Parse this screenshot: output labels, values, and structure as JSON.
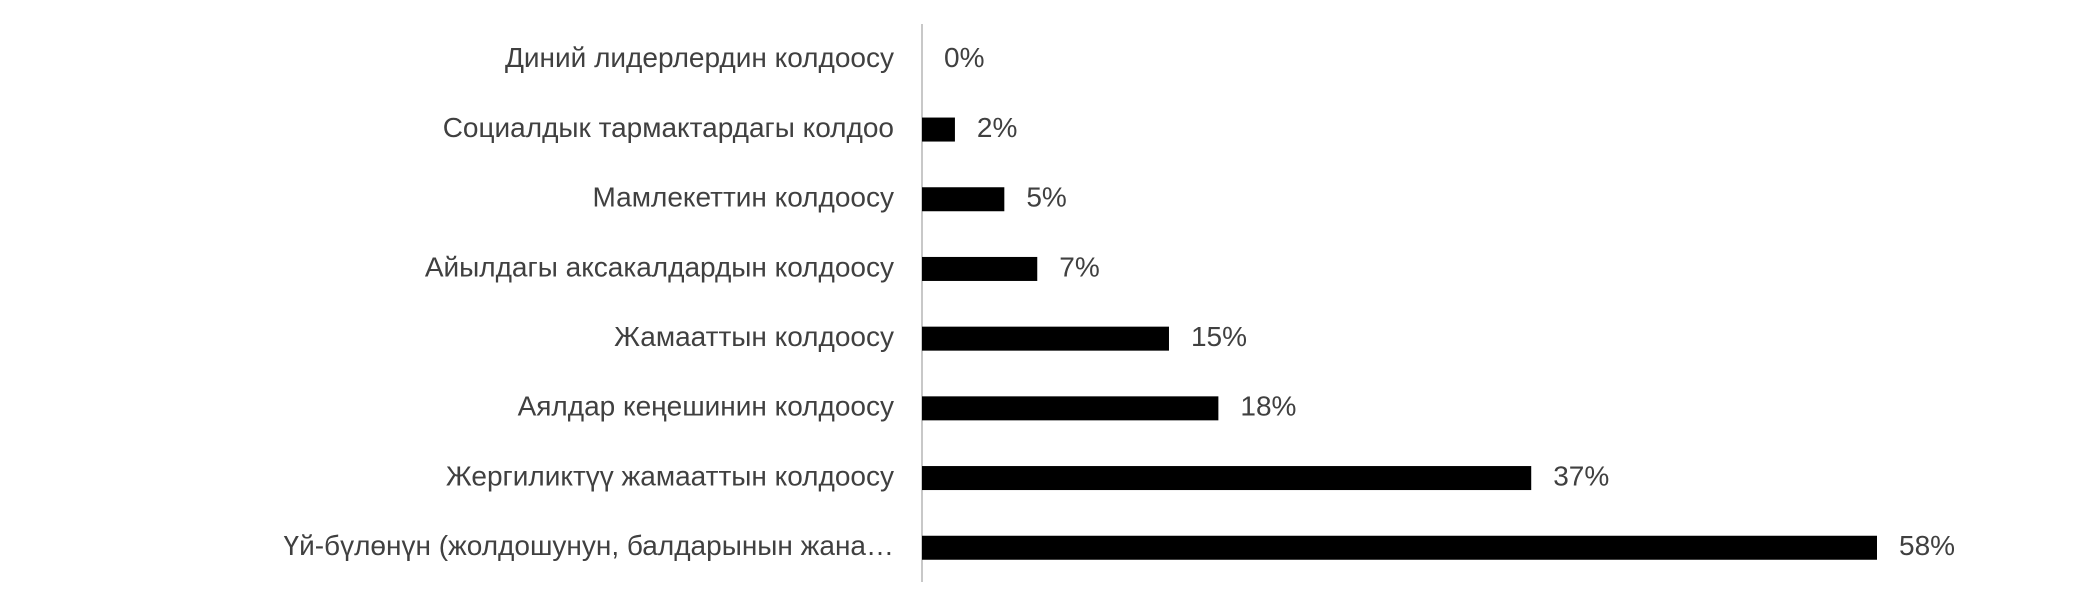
{
  "chart_data": {
    "type": "barh",
    "categories": [
      "Диний лидерлердин колдоосу",
      "Социалдык тармактардагы колдоо",
      "Мамлекеттин колдоосу",
      "Айылдагы аксакалдардын колдоосу",
      "Жамааттын колдоосу",
      "Аялдар кеңешинин колдоосу",
      "Жергиликтүү жамааттын колдоосу",
      "Үй-бүлөнүн (жолдошунун, балдарынын жана…"
    ],
    "values": [
      0,
      2,
      5,
      7,
      15,
      18,
      37,
      58
    ],
    "value_labels": [
      "0%",
      "2%",
      "5%",
      "7%",
      "15%",
      "18%",
      "37%",
      "58%"
    ],
    "color": "#000000"
  }
}
